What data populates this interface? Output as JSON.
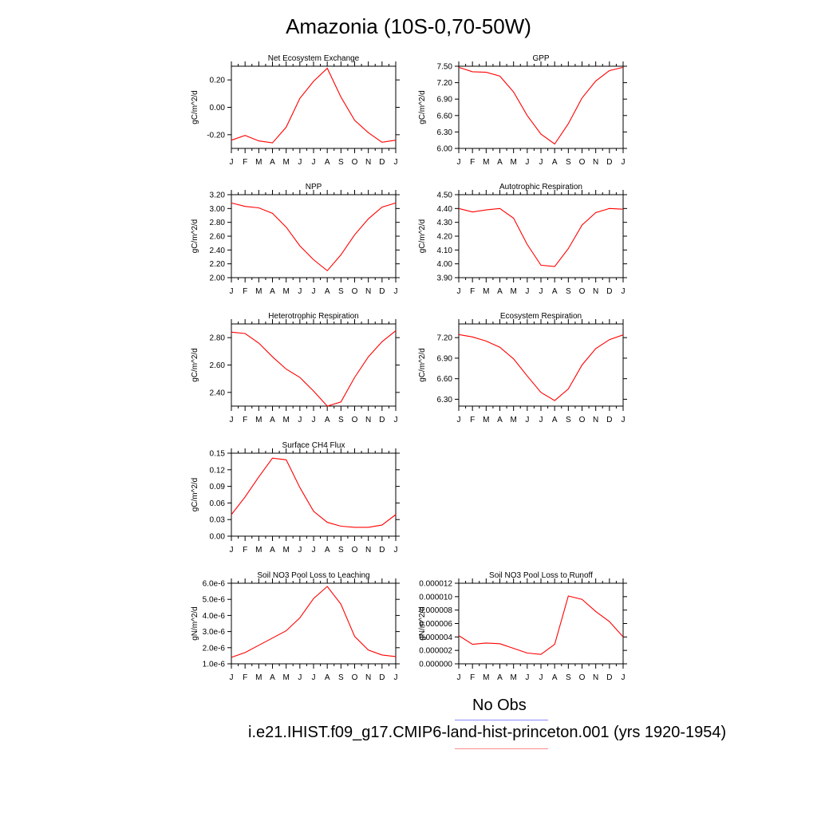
{
  "figure": {
    "title": "Amazonia (10S-0,70-50W)",
    "legend": [
      {
        "label": "No Obs",
        "color": "#8c8cff"
      },
      {
        "label": "i.e21.IHIST.f09_g17.CMIP6-land-hist-princeton.001 (yrs 1920-1954)",
        "color": "#ff8c8c"
      }
    ],
    "line_color": "#ff0000",
    "month_labels": [
      "J",
      "F",
      "M",
      "A",
      "M",
      "J",
      "J",
      "A",
      "S",
      "O",
      "N",
      "D",
      "J"
    ]
  },
  "chart_data": [
    {
      "type": "line",
      "title": "Net Ecosystem Exchange",
      "ylabel": "gC/m^2/d",
      "x": [
        "J",
        "F",
        "M",
        "A",
        "M",
        "J",
        "J",
        "A",
        "S",
        "O",
        "N",
        "D",
        "J"
      ],
      "ylim": [
        -0.3,
        0.3
      ],
      "yticks": [
        -0.2,
        0.0,
        0.2
      ],
      "ytick_labels": [
        "-0.20",
        "0.00",
        "0.20"
      ],
      "series": [
        {
          "values": [
            -0.24,
            -0.205,
            -0.245,
            -0.26,
            -0.145,
            0.065,
            0.19,
            0.285,
            0.075,
            -0.095,
            -0.185,
            -0.255,
            -0.24
          ]
        }
      ]
    },
    {
      "type": "line",
      "title": "GPP",
      "ylabel": "gC/m^2/d",
      "x": [
        "J",
        "F",
        "M",
        "A",
        "M",
        "J",
        "J",
        "A",
        "S",
        "O",
        "N",
        "D",
        "J"
      ],
      "ylim": [
        6.0,
        7.5
      ],
      "yticks": [
        6.0,
        6.3,
        6.6,
        6.9,
        7.2,
        7.5
      ],
      "ytick_labels": [
        "6.00",
        "6.30",
        "6.60",
        "6.90",
        "7.20",
        "7.50"
      ],
      "series": [
        {
          "values": [
            7.48,
            7.4,
            7.39,
            7.32,
            7.03,
            6.6,
            6.26,
            6.08,
            6.45,
            6.92,
            7.23,
            7.42,
            7.48
          ]
        }
      ]
    },
    {
      "type": "line",
      "title": "NPP",
      "ylabel": "gC/m^2/d",
      "x": [
        "J",
        "F",
        "M",
        "A",
        "M",
        "J",
        "J",
        "A",
        "S",
        "O",
        "N",
        "D",
        "J"
      ],
      "ylim": [
        2.0,
        3.2
      ],
      "yticks": [
        2.0,
        2.2,
        2.4,
        2.6,
        2.8,
        3.0,
        3.2
      ],
      "ytick_labels": [
        "2.00",
        "2.20",
        "2.40",
        "2.60",
        "2.80",
        "3.00",
        "3.20"
      ],
      "series": [
        {
          "values": [
            3.08,
            3.03,
            3.01,
            2.93,
            2.73,
            2.46,
            2.26,
            2.1,
            2.33,
            2.62,
            2.85,
            3.02,
            3.08
          ]
        }
      ]
    },
    {
      "type": "line",
      "title": "Autotrophic Respiration",
      "ylabel": "gC/m^2/d",
      "x": [
        "J",
        "F",
        "M",
        "A",
        "M",
        "J",
        "J",
        "A",
        "S",
        "O",
        "N",
        "D",
        "J"
      ],
      "ylim": [
        3.9,
        4.5
      ],
      "yticks": [
        3.9,
        4.0,
        4.1,
        4.2,
        4.3,
        4.4,
        4.5
      ],
      "ytick_labels": [
        "3.90",
        "4.00",
        "4.10",
        "4.20",
        "4.30",
        "4.40",
        "4.50"
      ],
      "series": [
        {
          "values": [
            4.4,
            4.375,
            4.39,
            4.4,
            4.33,
            4.14,
            3.99,
            3.98,
            4.11,
            4.28,
            4.37,
            4.4,
            4.395
          ]
        }
      ]
    },
    {
      "type": "line",
      "title": "Heterotrophic Respiration",
      "ylabel": "gC/m^2/d",
      "x": [
        "J",
        "F",
        "M",
        "A",
        "M",
        "J",
        "J",
        "A",
        "S",
        "O",
        "N",
        "D",
        "J"
      ],
      "ylim": [
        2.3,
        2.9
      ],
      "yticks": [
        2.4,
        2.6,
        2.8
      ],
      "ytick_labels": [
        "2.40",
        "2.60",
        "2.80"
      ],
      "series": [
        {
          "values": [
            2.84,
            2.83,
            2.76,
            2.66,
            2.57,
            2.51,
            2.41,
            2.3,
            2.33,
            2.51,
            2.66,
            2.77,
            2.85
          ]
        }
      ]
    },
    {
      "type": "line",
      "title": "Ecosystem Respiration",
      "ylabel": "gC/m^2/d",
      "x": [
        "J",
        "F",
        "M",
        "A",
        "M",
        "J",
        "J",
        "A",
        "S",
        "O",
        "N",
        "D",
        "J"
      ],
      "ylim": [
        6.2,
        7.4
      ],
      "yticks": [
        6.3,
        6.6,
        6.9,
        7.2
      ],
      "ytick_labels": [
        "6.30",
        "6.60",
        "6.90",
        "7.20"
      ],
      "series": [
        {
          "values": [
            7.245,
            7.21,
            7.15,
            7.06,
            6.89,
            6.64,
            6.4,
            6.28,
            6.45,
            6.8,
            7.04,
            7.17,
            7.24
          ]
        }
      ]
    },
    {
      "type": "line",
      "title": "Surface CH4 Flux",
      "ylabel": "gC/m^2/d",
      "x": [
        "J",
        "F",
        "M",
        "A",
        "M",
        "J",
        "J",
        "A",
        "S",
        "O",
        "N",
        "D",
        "J"
      ],
      "ylim": [
        0.0,
        0.15
      ],
      "yticks": [
        0.0,
        0.03,
        0.06,
        0.09,
        0.12,
        0.15
      ],
      "ytick_labels": [
        "0.00",
        "0.03",
        "0.06",
        "0.09",
        "0.12",
        "0.15"
      ],
      "series": [
        {
          "values": [
            0.039,
            0.071,
            0.107,
            0.141,
            0.138,
            0.088,
            0.045,
            0.025,
            0.018,
            0.016,
            0.016,
            0.02,
            0.039
          ]
        }
      ]
    },
    {
      "type": "line",
      "title": "Soil NO3 Pool Loss to Leaching",
      "ylabel": "gN/m^2/d",
      "x": [
        "J",
        "F",
        "M",
        "A",
        "M",
        "J",
        "J",
        "A",
        "S",
        "O",
        "N",
        "D",
        "J"
      ],
      "ylim": [
        1e-06,
        6e-06
      ],
      "yticks": [
        1e-06,
        2e-06,
        3e-06,
        4e-06,
        5e-06,
        6e-06
      ],
      "ytick_labels": [
        "1.0e-6",
        "2.0e-6",
        "3.0e-6",
        "4.0e-6",
        "5.0e-6",
        "6.0e-6"
      ],
      "series": [
        {
          "values": [
            1.4e-06,
            1.7e-06,
            2.15e-06,
            2.6e-06,
            3.05e-06,
            3.85e-06,
            5.05e-06,
            5.8e-06,
            4.7e-06,
            2.7e-06,
            1.85e-06,
            1.55e-06,
            1.45e-06
          ]
        }
      ]
    },
    {
      "type": "line",
      "title": "Soil NO3 Pool Loss to Runoff",
      "ylabel": "gN/m^2/d",
      "x": [
        "J",
        "F",
        "M",
        "A",
        "M",
        "J",
        "J",
        "A",
        "S",
        "O",
        "N",
        "D",
        "J"
      ],
      "ylim": [
        0.0,
        1.2e-05
      ],
      "yticks": [
        0.0,
        2e-06,
        4e-06,
        6e-06,
        8e-06,
        1e-05,
        1.2e-05
      ],
      "ytick_labels": [
        "0.000000",
        "0.000002",
        "0.000004",
        "0.000006",
        "0.000008",
        "0.000010",
        "0.000012"
      ],
      "series": [
        {
          "values": [
            4.2e-06,
            2.9e-06,
            3.1e-06,
            3e-06,
            2.3e-06,
            1.6e-06,
            1.4e-06,
            2.9e-06,
            1.01e-05,
            9.6e-06,
            7.8e-06,
            6.3e-06,
            4e-06
          ]
        }
      ]
    }
  ]
}
